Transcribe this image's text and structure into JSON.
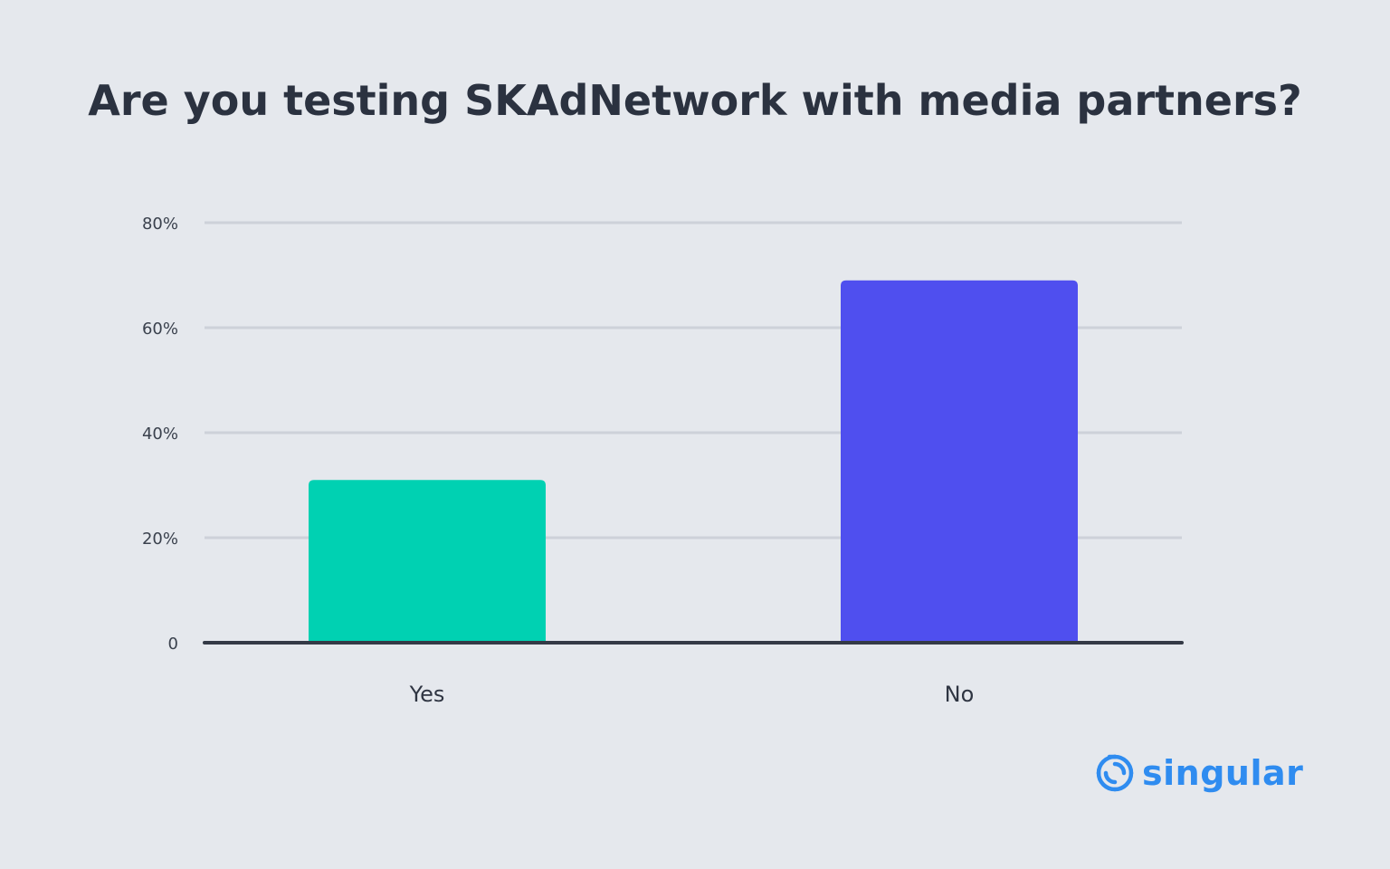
{
  "chart_data": {
    "type": "bar",
    "title": "Are you testing SKAdNetwork with media partners?",
    "categories": [
      "Yes",
      "No"
    ],
    "values": [
      31,
      69
    ],
    "bar_colors": [
      "#00d1b2",
      "#4f4fef"
    ],
    "yticks": [
      {
        "value": 0,
        "label": "0"
      },
      {
        "value": 20,
        "label": "20%"
      },
      {
        "value": 40,
        "label": "40%"
      },
      {
        "value": 60,
        "label": "60%"
      },
      {
        "value": 80,
        "label": "80%"
      }
    ],
    "ylim": [
      0,
      80
    ],
    "grid": true,
    "xlabel": "",
    "ylabel": ""
  },
  "brand": {
    "name": "singular",
    "icon": "singular-logo-icon",
    "color": "#2f8cf0"
  }
}
